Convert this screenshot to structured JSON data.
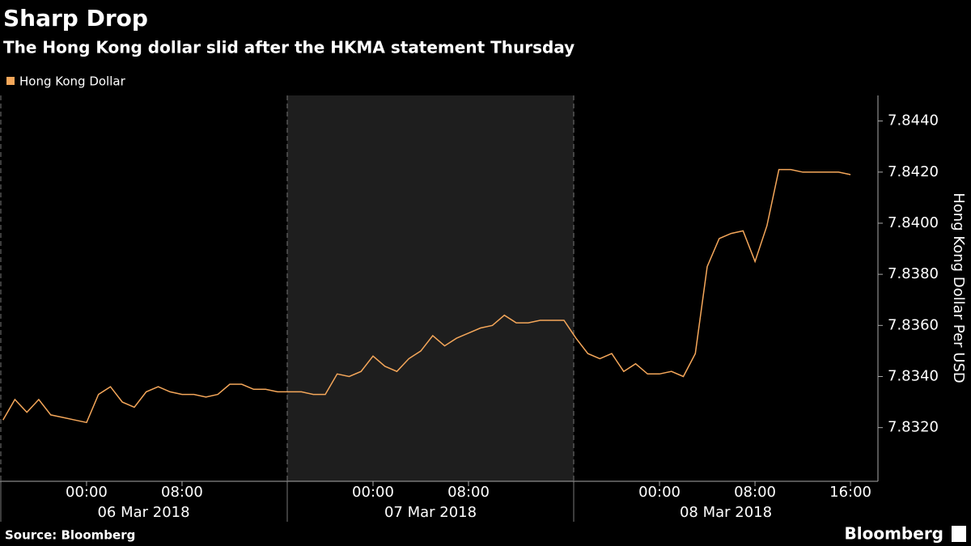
{
  "chart_data": {
    "type": "line",
    "title": "Sharp Drop",
    "subtitle": "The Hong Kong dollar slid after the HKMA statement Thursday",
    "y_label": "Hong Kong Dollar Per USD",
    "source": "Source: Bloomberg",
    "brand": "Bloomberg",
    "xlim": [
      "2018-03-05 16:45",
      "2018-03-08 18:18"
    ],
    "ylim": [
      7.8299,
      7.845
    ],
    "yticks": [
      {
        "value": 7.844,
        "label": "7.8440"
      },
      {
        "value": 7.842,
        "label": "7.8420"
      },
      {
        "value": 7.84,
        "label": "7.8400"
      },
      {
        "value": 7.838,
        "label": "7.8380"
      },
      {
        "value": 7.836,
        "label": "7.8360"
      },
      {
        "value": 7.834,
        "label": "7.8340"
      },
      {
        "value": 7.832,
        "label": "7.8320"
      }
    ],
    "xticks": [
      {
        "value": "2018-03-06 00:00",
        "label": "00:00"
      },
      {
        "value": "2018-03-06 08:00",
        "label": "08:00"
      },
      {
        "value": "2018-03-07 00:00",
        "label": "00:00"
      },
      {
        "value": "2018-03-07 08:00",
        "label": "08:00"
      },
      {
        "value": "2018-03-08 00:00",
        "label": "00:00"
      },
      {
        "value": "2018-03-08 08:00",
        "label": "08:00"
      },
      {
        "value": "2018-03-08 16:00",
        "label": "16:00"
      }
    ],
    "x_groups": [
      "06 Mar 2018",
      "07 Mar 2018",
      "08 Mar 2018"
    ],
    "x": [
      "2018-03-05 17:00",
      "2018-03-05 18:00",
      "2018-03-05 19:00",
      "2018-03-05 20:00",
      "2018-03-05 21:00",
      "2018-03-05 22:00",
      "2018-03-05 23:00",
      "2018-03-06 00:00",
      "2018-03-06 01:00",
      "2018-03-06 02:00",
      "2018-03-06 03:00",
      "2018-03-06 04:00",
      "2018-03-06 05:00",
      "2018-03-06 06:00",
      "2018-03-06 07:00",
      "2018-03-06 08:00",
      "2018-03-06 09:00",
      "2018-03-06 10:00",
      "2018-03-06 11:00",
      "2018-03-06 12:00",
      "2018-03-06 13:00",
      "2018-03-06 14:00",
      "2018-03-06 15:00",
      "2018-03-06 16:00",
      "2018-03-06 17:00",
      "2018-03-06 18:00",
      "2018-03-06 19:00",
      "2018-03-06 20:00",
      "2018-03-06 21:00",
      "2018-03-06 22:00",
      "2018-03-06 23:00",
      "2018-03-07 00:00",
      "2018-03-07 01:00",
      "2018-03-07 02:00",
      "2018-03-07 03:00",
      "2018-03-07 04:00",
      "2018-03-07 05:00",
      "2018-03-07 06:00",
      "2018-03-07 07:00",
      "2018-03-07 08:00",
      "2018-03-07 09:00",
      "2018-03-07 10:00",
      "2018-03-07 11:00",
      "2018-03-07 12:00",
      "2018-03-07 13:00",
      "2018-03-07 14:00",
      "2018-03-07 15:00",
      "2018-03-07 16:00",
      "2018-03-07 17:00",
      "2018-03-07 18:00",
      "2018-03-07 19:00",
      "2018-03-07 20:00",
      "2018-03-07 21:00",
      "2018-03-07 22:00",
      "2018-03-07 23:00",
      "2018-03-08 00:00",
      "2018-03-08 01:00",
      "2018-03-08 02:00",
      "2018-03-08 03:00",
      "2018-03-08 04:00",
      "2018-03-08 05:00",
      "2018-03-08 06:00",
      "2018-03-08 07:00",
      "2018-03-08 08:00",
      "2018-03-08 09:00",
      "2018-03-08 10:00",
      "2018-03-08 11:00",
      "2018-03-08 12:00",
      "2018-03-08 13:00",
      "2018-03-08 14:00",
      "2018-03-08 15:00",
      "2018-03-08 16:00"
    ],
    "series": [
      {
        "name": "Hong Kong Dollar",
        "color": "#f5a75a",
        "values": [
          7.8323,
          7.8331,
          7.8326,
          7.8331,
          7.8325,
          7.8324,
          7.8323,
          7.8322,
          7.8333,
          7.8336,
          7.833,
          7.8328,
          7.8334,
          7.8336,
          7.8334,
          7.8333,
          7.8333,
          7.8332,
          7.8333,
          7.8337,
          7.8337,
          7.8335,
          7.8335,
          7.8334,
          7.8334,
          7.8334,
          7.8333,
          7.8333,
          7.8341,
          7.834,
          7.8342,
          7.8348,
          7.8344,
          7.8342,
          7.8347,
          7.835,
          7.8356,
          7.8352,
          7.8355,
          7.8357,
          7.8359,
          7.836,
          7.8364,
          7.8361,
          7.8361,
          7.8362,
          7.8362,
          7.8362,
          7.8355,
          7.8349,
          7.8347,
          7.8349,
          7.8342,
          7.8345,
          7.8341,
          7.8341,
          7.8342,
          7.834,
          7.8349,
          7.8383,
          7.8394,
          7.8396,
          7.8397,
          7.8385,
          7.8399,
          7.8421,
          7.8421,
          7.842,
          7.842,
          7.842,
          7.842,
          7.8419
        ]
      }
    ]
  }
}
